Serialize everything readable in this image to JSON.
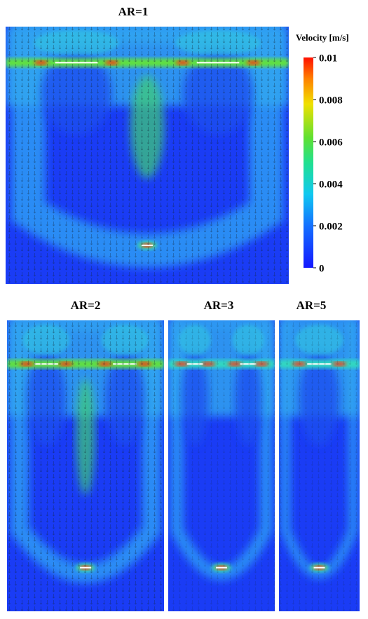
{
  "chart_data": {
    "type": "contour",
    "panels": [
      {
        "title": "AR=1"
      },
      {
        "title": "AR=2"
      },
      {
        "title": "AR=3"
      },
      {
        "title": "AR=5"
      }
    ],
    "colorbar": {
      "label": "Velocity [m/s]",
      "lim": [
        0,
        0.01
      ],
      "ticks": [
        0,
        0.002,
        0.004,
        0.006,
        0.008,
        0.01
      ]
    }
  }
}
